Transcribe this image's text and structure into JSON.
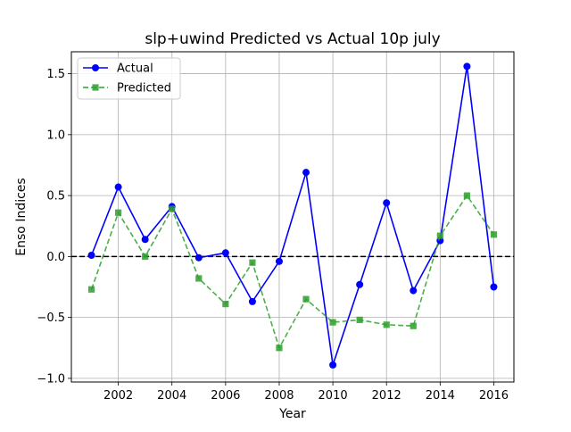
{
  "chart_data": {
    "type": "line",
    "title": "slp+uwind Predicted vs Actual 10p july",
    "xlabel": "Year",
    "ylabel": "Enso Indices",
    "x": [
      2001,
      2002,
      2003,
      2004,
      2005,
      2006,
      2007,
      2008,
      2009,
      2010,
      2011,
      2012,
      2013,
      2014,
      2015,
      2016
    ],
    "xlim": [
      2000.25,
      2016.75
    ],
    "ylim": [
      -1.03,
      1.68
    ],
    "xticks": [
      2002,
      2004,
      2006,
      2008,
      2010,
      2012,
      2014,
      2016
    ],
    "yticks": [
      -1.0,
      -0.5,
      0.0,
      0.5,
      1.0,
      1.5
    ],
    "ytick_labels": [
      "−1.0",
      "−0.5",
      "0.0",
      "0.5",
      "1.0",
      "1.5"
    ],
    "grid": true,
    "reference_line": {
      "y": 0.0,
      "color": "#000000",
      "style": "dashed"
    },
    "legend": {
      "position": "top-left"
    },
    "series": [
      {
        "name": "Actual",
        "color": "#0000ff",
        "marker": "circle",
        "line_style": "solid",
        "values": [
          0.01,
          0.57,
          0.14,
          0.41,
          -0.01,
          0.03,
          -0.37,
          -0.04,
          0.69,
          -0.89,
          -0.23,
          0.44,
          -0.28,
          0.13,
          1.56,
          -0.25
        ]
      },
      {
        "name": "Predicted",
        "color": "#2ca02c",
        "marker": "square",
        "line_style": "dashed",
        "values": [
          -0.27,
          0.36,
          0.0,
          0.39,
          -0.18,
          -0.39,
          -0.05,
          -0.75,
          -0.35,
          -0.54,
          -0.52,
          -0.56,
          -0.57,
          0.17,
          0.5,
          0.18
        ]
      }
    ]
  }
}
